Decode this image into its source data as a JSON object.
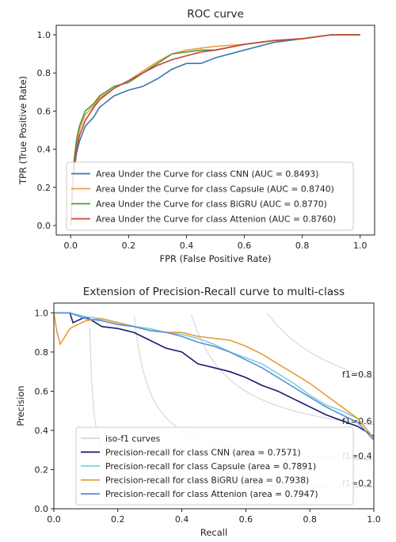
{
  "chart_data": [
    {
      "type": "line",
      "title": "ROC curve",
      "xlabel": "FPR (False Positive Rate)",
      "ylabel": "TPR (True Positive Rate)",
      "xlim": [
        -0.05,
        1.05
      ],
      "ylim": [
        -0.05,
        1.05
      ],
      "xticks": [
        "0.0",
        "0.2",
        "0.4",
        "0.6",
        "0.8",
        "1.0"
      ],
      "yticks": [
        "0.0",
        "0.2",
        "0.4",
        "0.6",
        "0.8",
        "1.0"
      ],
      "grid": false,
      "legend_position": "lower-right",
      "series": [
        {
          "name": "Area Under the Curve for class CNN (AUC = 0.8493)",
          "color": "#3b78b0",
          "x": [
            0.0,
            0.01,
            0.02,
            0.03,
            0.05,
            0.08,
            0.1,
            0.15,
            0.2,
            0.25,
            0.3,
            0.35,
            0.4,
            0.45,
            0.5,
            0.6,
            0.7,
            0.8,
            0.9,
            1.0
          ],
          "y": [
            0.0,
            0.27,
            0.38,
            0.44,
            0.52,
            0.57,
            0.62,
            0.68,
            0.71,
            0.73,
            0.77,
            0.82,
            0.85,
            0.85,
            0.88,
            0.92,
            0.96,
            0.98,
            1.0,
            1.0
          ]
        },
        {
          "name": "Area Under the Curve for class Capsule (AUC = 0.8740)",
          "color": "#ef9c3c",
          "x": [
            0.0,
            0.01,
            0.02,
            0.03,
            0.05,
            0.08,
            0.1,
            0.15,
            0.2,
            0.25,
            0.3,
            0.35,
            0.4,
            0.45,
            0.5,
            0.6,
            0.7,
            0.8,
            0.9,
            1.0
          ],
          "y": [
            0.0,
            0.3,
            0.42,
            0.5,
            0.58,
            0.63,
            0.67,
            0.72,
            0.76,
            0.81,
            0.86,
            0.9,
            0.92,
            0.93,
            0.94,
            0.95,
            0.97,
            0.98,
            1.0,
            1.0
          ]
        },
        {
          "name": "Area Under the Curve for class BiGRU (AUC = 0.8770)",
          "color": "#4a9b3f",
          "x": [
            0.0,
            0.01,
            0.02,
            0.03,
            0.05,
            0.08,
            0.1,
            0.15,
            0.2,
            0.25,
            0.3,
            0.35,
            0.4,
            0.45,
            0.5,
            0.6,
            0.7,
            0.8,
            0.9,
            1.0
          ],
          "y": [
            0.0,
            0.32,
            0.45,
            0.52,
            0.6,
            0.64,
            0.68,
            0.73,
            0.75,
            0.8,
            0.85,
            0.9,
            0.91,
            0.92,
            0.92,
            0.95,
            0.97,
            0.98,
            1.0,
            1.0
          ]
        },
        {
          "name": "Area Under the Curve for class Attenion (AUC = 0.8760)",
          "color": "#c94235",
          "x": [
            0.0,
            0.01,
            0.02,
            0.03,
            0.05,
            0.08,
            0.1,
            0.15,
            0.2,
            0.25,
            0.3,
            0.35,
            0.4,
            0.45,
            0.5,
            0.6,
            0.7,
            0.8,
            0.9,
            1.0
          ],
          "y": [
            0.0,
            0.3,
            0.4,
            0.47,
            0.55,
            0.62,
            0.66,
            0.72,
            0.76,
            0.8,
            0.84,
            0.87,
            0.89,
            0.91,
            0.92,
            0.95,
            0.97,
            0.98,
            1.0,
            1.0
          ]
        }
      ]
    },
    {
      "type": "line",
      "title": "Extension of Precision-Recall curve to multi-class",
      "xlabel": "Recall",
      "ylabel": "Precision",
      "xlim": [
        0.0,
        1.0
      ],
      "ylim": [
        0.0,
        1.05
      ],
      "xticks": [
        "0.0",
        "0.2",
        "0.4",
        "0.6",
        "0.8",
        "1.0"
      ],
      "yticks": [
        "0.0",
        "0.2",
        "0.4",
        "0.6",
        "0.8",
        "1.0"
      ],
      "grid": false,
      "legend_position": "lower-left",
      "iso_f1": {
        "name": "iso-f1 curves",
        "color": "#d8d8d8",
        "levels": [
          0.2,
          0.4,
          0.6,
          0.8
        ],
        "labels": [
          "f1=0.2",
          "f1=0.4",
          "f1=0.6",
          "f1=0.8"
        ]
      },
      "series": [
        {
          "name": "Precision-recall for class CNN (area = 0.7571)",
          "color": "#1a1a6e",
          "x": [
            0.0,
            0.05,
            0.06,
            0.1,
            0.15,
            0.2,
            0.25,
            0.3,
            0.35,
            0.4,
            0.45,
            0.5,
            0.55,
            0.6,
            0.65,
            0.7,
            0.75,
            0.8,
            0.85,
            0.9,
            0.95,
            1.0
          ],
          "y": [
            1.0,
            1.0,
            0.95,
            0.98,
            0.93,
            0.92,
            0.9,
            0.86,
            0.82,
            0.8,
            0.74,
            0.72,
            0.7,
            0.67,
            0.63,
            0.6,
            0.56,
            0.52,
            0.48,
            0.45,
            0.42,
            0.37
          ]
        },
        {
          "name": "Precision-recall for class Capsule (area = 0.7891)",
          "color": "#7dd0e0",
          "x": [
            0.0,
            0.05,
            0.1,
            0.15,
            0.2,
            0.25,
            0.3,
            0.35,
            0.4,
            0.45,
            0.5,
            0.55,
            0.6,
            0.65,
            0.7,
            0.75,
            0.8,
            0.85,
            0.9,
            0.95,
            1.0
          ],
          "y": [
            1.0,
            1.0,
            0.98,
            0.97,
            0.95,
            0.93,
            0.92,
            0.9,
            0.89,
            0.87,
            0.84,
            0.8,
            0.77,
            0.74,
            0.69,
            0.64,
            0.58,
            0.53,
            0.5,
            0.46,
            0.36
          ]
        },
        {
          "name": "Precision-recall for class BiGRU (area = 0.7938)",
          "color": "#e89b33",
          "x": [
            0.0,
            0.01,
            0.02,
            0.05,
            0.1,
            0.15,
            0.2,
            0.25,
            0.3,
            0.35,
            0.4,
            0.45,
            0.5,
            0.55,
            0.6,
            0.65,
            0.7,
            0.75,
            0.8,
            0.85,
            0.9,
            0.95,
            1.0
          ],
          "y": [
            1.0,
            0.9,
            0.84,
            0.92,
            0.96,
            0.97,
            0.95,
            0.93,
            0.91,
            0.9,
            0.9,
            0.88,
            0.87,
            0.86,
            0.83,
            0.79,
            0.74,
            0.69,
            0.64,
            0.58,
            0.52,
            0.46,
            0.36
          ]
        },
        {
          "name": "Precision-recall for class Attenion (area = 0.7947)",
          "color": "#5b8fd6",
          "x": [
            0.0,
            0.05,
            0.1,
            0.15,
            0.2,
            0.25,
            0.3,
            0.35,
            0.4,
            0.45,
            0.5,
            0.55,
            0.6,
            0.65,
            0.7,
            0.75,
            0.8,
            0.85,
            0.9,
            0.95,
            1.0
          ],
          "y": [
            1.0,
            1.0,
            0.97,
            0.96,
            0.94,
            0.93,
            0.91,
            0.9,
            0.88,
            0.85,
            0.83,
            0.8,
            0.76,
            0.72,
            0.67,
            0.62,
            0.57,
            0.52,
            0.48,
            0.44,
            0.35
          ]
        }
      ]
    }
  ]
}
